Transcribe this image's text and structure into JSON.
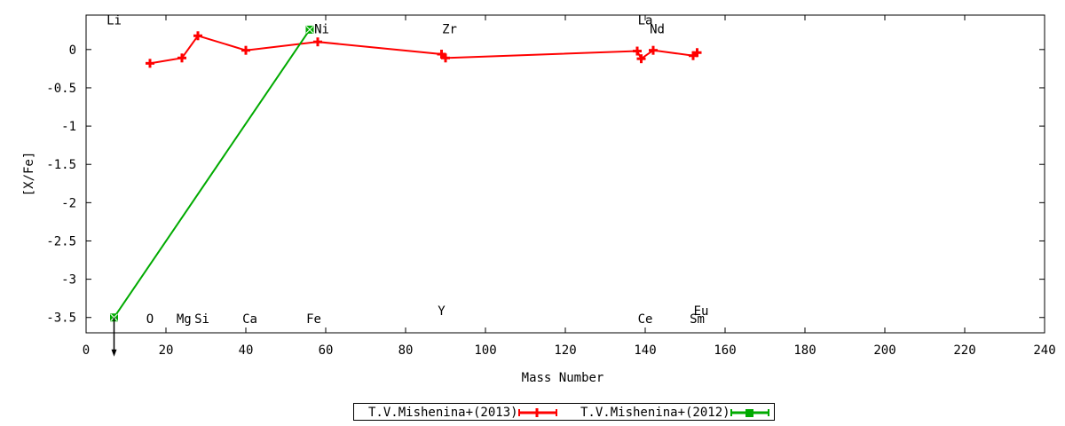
{
  "chart_data": {
    "type": "line",
    "xlabel": "Mass Number",
    "ylabel": "[X/Fe]",
    "xlim": [
      0,
      240
    ],
    "ylim": [
      -3.7,
      0.45
    ],
    "x_ticks": [
      0,
      20,
      40,
      60,
      80,
      100,
      120,
      140,
      160,
      180,
      200,
      220,
      240
    ],
    "y_ticks": [
      0,
      -0.5,
      -1,
      -1.5,
      -2,
      -2.5,
      -3,
      -3.5
    ],
    "y_tick_labels": [
      "0",
      "-0.5",
      "-1",
      "-1.5",
      "-2",
      "-2.5",
      "-3",
      "-3.5"
    ],
    "grid": false,
    "legend_position": "bottom-center",
    "series": [
      {
        "name": "T.V.Mishenina+(2013)",
        "color": "#ff0000",
        "marker": "plus",
        "points": [
          {
            "x": 16,
            "y": -0.18
          },
          {
            "x": 24,
            "y": -0.11
          },
          {
            "x": 28,
            "y": 0.18
          },
          {
            "x": 40,
            "y": -0.01
          },
          {
            "x": 58,
            "y": 0.1
          },
          {
            "x": 89,
            "y": -0.06
          },
          {
            "x": 90,
            "y": -0.11
          },
          {
            "x": 138,
            "y": -0.02
          },
          {
            "x": 139,
            "y": -0.12
          },
          {
            "x": 142,
            "y": -0.01
          },
          {
            "x": 152,
            "y": -0.08
          },
          {
            "x": 153,
            "y": -0.04
          }
        ]
      },
      {
        "name": "T.V.Mishenina+(2012)",
        "color": "#00aa00",
        "marker": "square-x",
        "points": [
          {
            "x": 7,
            "y": -3.5,
            "upper_limit": true
          },
          {
            "x": 56,
            "y": 0.26
          }
        ]
      }
    ],
    "element_labels": [
      {
        "text": "Li",
        "x": 7,
        "y": 0.33
      },
      {
        "text": "O",
        "x": 16,
        "y": -3.57
      },
      {
        "text": "Mg",
        "x": 24.5,
        "y": -3.57
      },
      {
        "text": "Si",
        "x": 29,
        "y": -3.57
      },
      {
        "text": "Ca",
        "x": 41,
        "y": -3.57
      },
      {
        "text": "Fe",
        "x": 57,
        "y": -3.57
      },
      {
        "text": "Ni",
        "x": 59,
        "y": 0.21
      },
      {
        "text": "Zr",
        "x": 91,
        "y": 0.21
      },
      {
        "text": "Y",
        "x": 89,
        "y": -3.47
      },
      {
        "text": "La",
        "x": 140,
        "y": 0.33
      },
      {
        "text": "Nd",
        "x": 143,
        "y": 0.21
      },
      {
        "text": "Ce",
        "x": 140,
        "y": -3.57
      },
      {
        "text": "Sm",
        "x": 153,
        "y": -3.57
      },
      {
        "text": "Eu",
        "x": 154,
        "y": -3.47
      }
    ]
  }
}
